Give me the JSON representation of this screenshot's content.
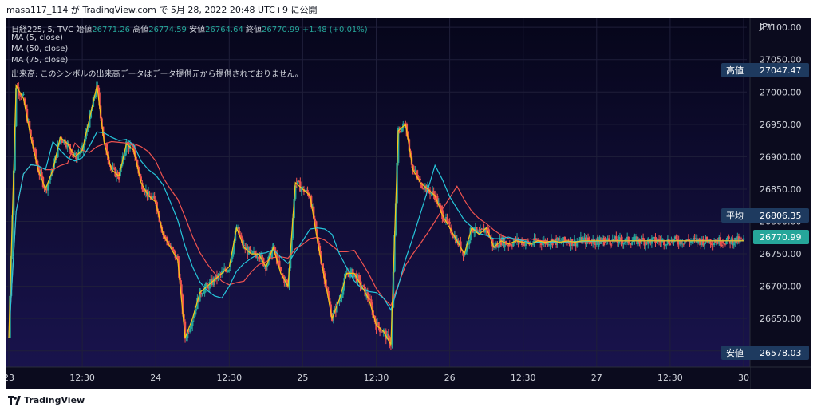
{
  "header": {
    "text": "masa117_114 が TradingView.com で 5月 28, 2022 20:48 UTC+9 に公開"
  },
  "legend": {
    "symbol": "日経225, 5, TVC",
    "open_label": "始値",
    "open": "26771.26",
    "high_label": "高値",
    "high": "26774.59",
    "low_label": "安値",
    "low": "26764.64",
    "close_label": "終値",
    "close": "26770.99",
    "change": "+1.48 (+0.01%)",
    "ma1": "MA (5, close)",
    "ma2": "MA (50, close)",
    "ma3": "MA (75, close)",
    "volume_note": "出来高: このシンボルの出来高データはデータ提供元から提供されておりません。"
  },
  "price_scale": {
    "currency": "JPY",
    "high_tag_label": "高値",
    "high_tag_value": "27047.47",
    "avg_tag_label": "平均",
    "avg_tag_value": "26806.35",
    "last_tag_value": "26770.99",
    "low_tag_label": "安値",
    "low_tag_value": "26578.03"
  },
  "footer": {
    "brand": "TradingView"
  },
  "colors": {
    "background_top": "#06061a",
    "background_bottom": "#1a1450",
    "up": "#26a69a",
    "down": "#ef5350",
    "ma5": "#f5c518",
    "ma50": "#26c6da",
    "ma75": "#ef5350",
    "tag": "#1e3a5f",
    "last_tag": "#26a69a"
  },
  "chart_data": {
    "type": "line",
    "title": "日経225, 5, TVC",
    "xlabel": "",
    "ylabel": "",
    "ylim": [
      26575,
      27115
    ],
    "y_ticks": [
      27100,
      27050,
      27000,
      26950,
      26900,
      26850,
      26800,
      26750,
      26700,
      26650,
      26600
    ],
    "y_tick_labels": [
      "27100.00",
      "27050.00",
      "27000.00",
      "26950.00",
      "26900.00",
      "26850.00",
      "26800.00",
      "26750.00",
      "26700.00",
      "26650.00",
      "26600.00"
    ],
    "x_ticks": [
      {
        "label": "23",
        "t": 0
      },
      {
        "label": "12:30",
        "t": 0.5
      },
      {
        "label": "24",
        "t": 1
      },
      {
        "label": "12:30",
        "t": 1.5
      },
      {
        "label": "25",
        "t": 2
      },
      {
        "label": "12:30",
        "t": 2.5
      },
      {
        "label": "26",
        "t": 3
      },
      {
        "label": "12:30",
        "t": 3.5
      },
      {
        "label": "27",
        "t": 4
      },
      {
        "label": "12:30",
        "t": 4.5
      },
      {
        "label": "30",
        "t": 5
      }
    ],
    "series": [
      {
        "name": "MA (5, close)",
        "x": [
          0,
          0.05,
          0.1,
          0.15,
          0.2,
          0.25,
          0.3,
          0.35,
          0.4,
          0.45,
          0.5,
          0.55,
          0.6,
          0.65,
          0.7,
          0.75,
          0.8,
          0.85,
          0.9,
          0.95,
          1.0,
          1.05,
          1.1,
          1.15,
          1.2,
          1.25,
          1.3,
          1.35,
          1.4,
          1.45,
          1.5,
          1.55,
          1.6,
          1.65,
          1.7,
          1.75,
          1.8,
          1.85,
          1.9,
          1.95,
          2.0,
          2.05,
          2.1,
          2.15,
          2.2,
          2.25,
          2.3,
          2.35,
          2.4,
          2.45,
          2.5,
          2.55,
          2.6,
          2.65,
          2.7,
          2.75,
          2.8,
          2.85,
          2.9,
          2.95,
          3.0,
          3.05,
          3.1,
          3.15,
          3.2,
          3.25,
          3.3,
          3.35,
          3.4,
          3.45,
          3.5,
          3.55,
          3.6,
          3.65,
          3.7,
          3.75,
          3.8,
          3.85,
          3.9,
          3.95,
          4.0,
          4.02,
          4.05,
          4.1,
          4.15,
          4.2,
          4.25,
          4.3,
          4.35,
          4.4,
          4.45,
          4.5,
          4.55,
          4.6,
          4.65,
          4.7,
          4.75,
          4.8,
          4.85,
          4.9,
          4.95,
          5.0
        ],
        "values": [
          26620,
          27010,
          26990,
          26930,
          26880,
          26850,
          26880,
          26930,
          26920,
          26900,
          26910,
          26960,
          27010,
          26920,
          26880,
          26870,
          26920,
          26910,
          26860,
          26840,
          26830,
          26780,
          26760,
          26740,
          26620,
          26650,
          26690,
          26700,
          26710,
          26720,
          26730,
          26790,
          26760,
          26750,
          26750,
          26730,
          26760,
          26720,
          26700,
          26860,
          26850,
          26840,
          26770,
          26710,
          26650,
          26680,
          26720,
          26720,
          26700,
          26680,
          26640,
          26630,
          26610,
          26940,
          26950,
          26880,
          26860,
          26850,
          26840,
          26810,
          26790,
          26770,
          26750,
          26790,
          26780,
          26790,
          26760,
          26770,
          26765,
          26770,
          26768,
          26765,
          26770,
          26768,
          26770,
          26768,
          26770,
          26768,
          26770,
          26770,
          26770,
          26770,
          26770,
          26770,
          26770,
          26770,
          26770,
          26770,
          26770,
          26770,
          26770,
          26770,
          26770,
          26770,
          26770,
          26770,
          26770,
          26770,
          26770,
          26770,
          26770,
          26770
        ]
      }
    ]
  }
}
